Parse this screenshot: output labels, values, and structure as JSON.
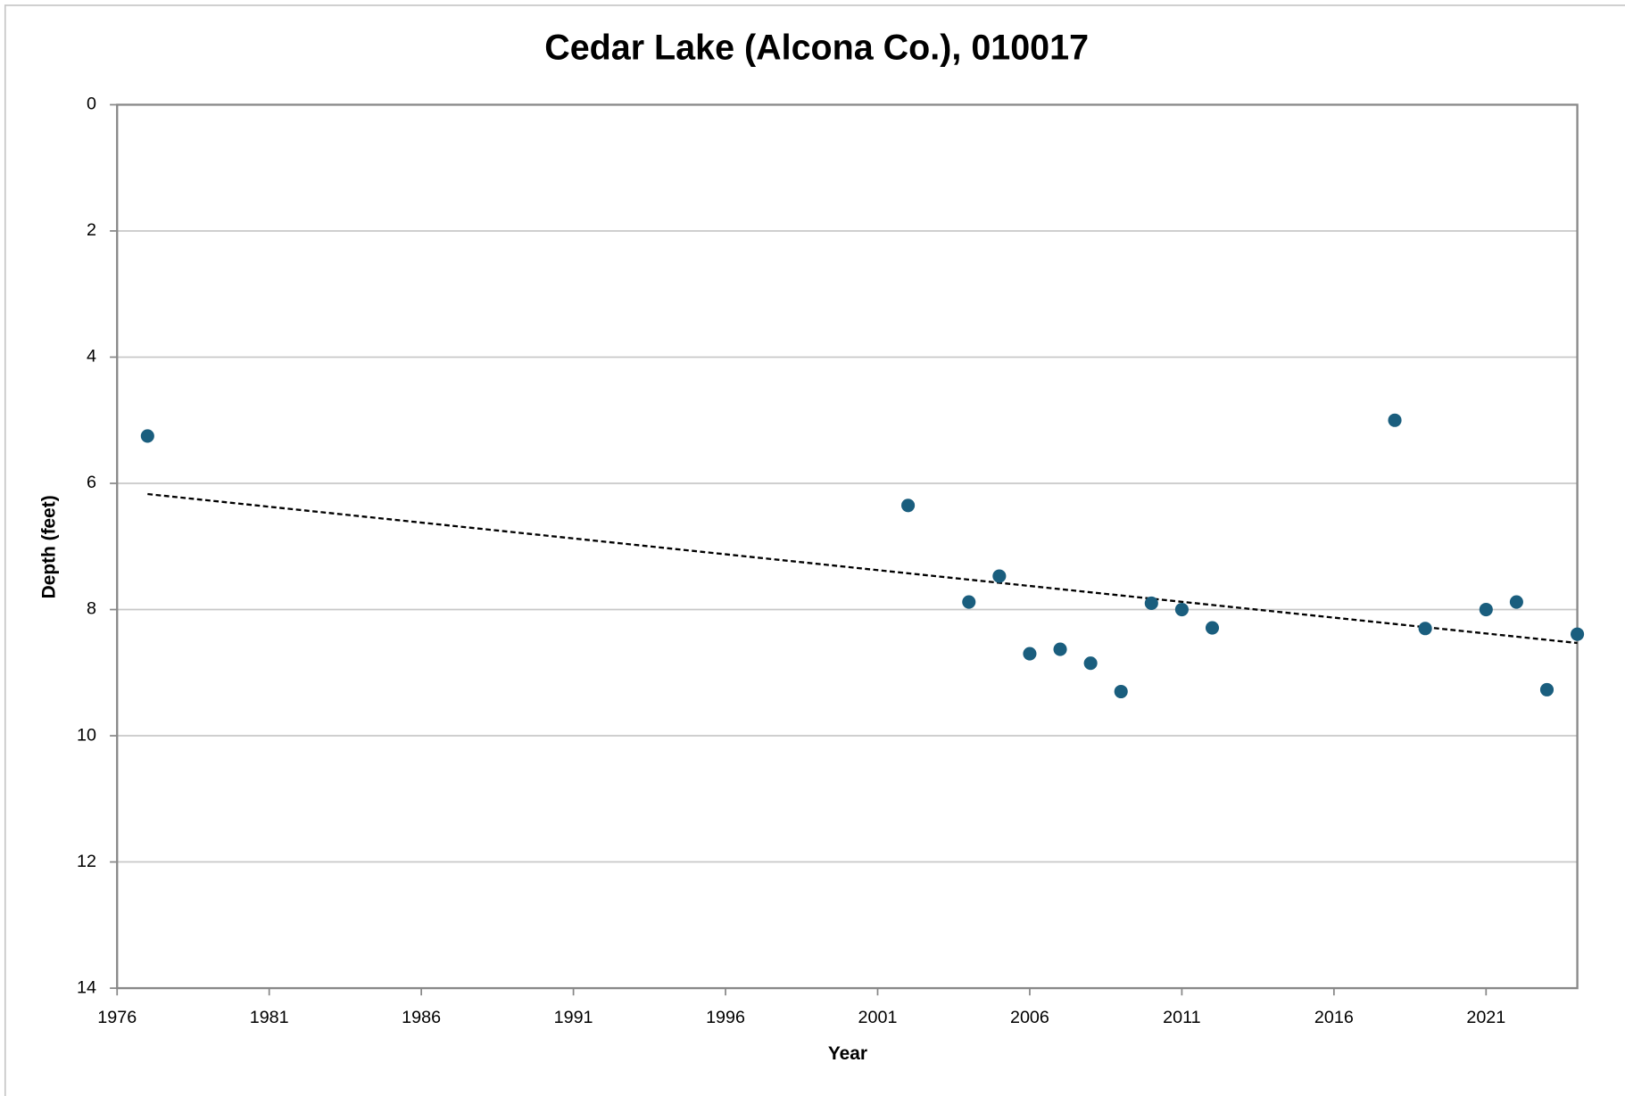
{
  "chart_data": {
    "type": "scatter",
    "title": "Cedar Lake (Alcona Co.), 010017",
    "x_label": "Year",
    "y_label": "Depth (feet)",
    "x": [
      1977,
      2002,
      2004,
      2005,
      2006,
      2007,
      2008,
      2009,
      2010,
      2011,
      2012,
      2018,
      2019,
      2021,
      2022,
      2023,
      2024
    ],
    "series": [
      {
        "color": "#1a5e7e",
        "values": [
          5.25,
          6.35,
          7.88,
          7.47,
          8.7,
          8.63,
          8.85,
          9.3,
          7.9,
          8.0,
          8.29,
          5.0,
          8.3,
          8.0,
          7.88,
          9.27,
          8.39
        ]
      }
    ],
    "trendline": {
      "x": [
        1977,
        2024
      ],
      "values": [
        6.17,
        8.53
      ],
      "color": "#000000",
      "dashed": true
    },
    "xlim": [
      1976,
      2024
    ],
    "xticks": [
      1976,
      1981,
      1986,
      1991,
      1996,
      2001,
      2006,
      2011,
      2016,
      2021
    ],
    "ylim": [
      0,
      14
    ],
    "yticks": [
      0,
      2,
      4,
      6,
      8,
      10,
      12,
      14
    ],
    "y_inverted": true,
    "grid": true
  }
}
